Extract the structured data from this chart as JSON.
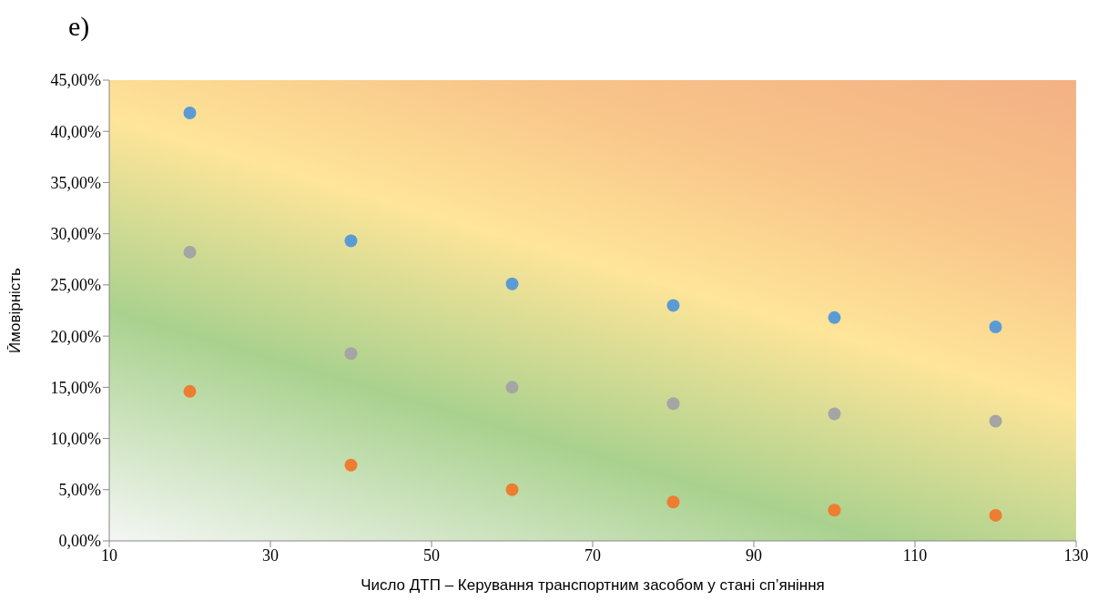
{
  "chart_data": {
    "type": "scatter",
    "title": "e)",
    "xlabel": "Число ДТП – Керування транспортним засобом у стані сп’яніння",
    "ylabel": "Ймовірність",
    "x": [
      20,
      40,
      60,
      80,
      100,
      120
    ],
    "series": [
      {
        "color": "#5b9bd5",
        "values": [
          41.8,
          29.3,
          25.1,
          23.0,
          21.8,
          20.9
        ]
      },
      {
        "color": "#a5a5a5",
        "values": [
          28.2,
          18.3,
          15.0,
          13.4,
          12.4,
          11.7
        ]
      },
      {
        "color": "#ed7d31",
        "values": [
          14.6,
          7.4,
          5.0,
          3.8,
          3.0,
          2.5
        ]
      }
    ],
    "xlim": [
      10,
      130
    ],
    "xticks": [
      10,
      30,
      50,
      70,
      90,
      110,
      130
    ],
    "ylim": [
      0,
      45
    ],
    "yticks": [
      {
        "value": 0,
        "label": "0,00%"
      },
      {
        "value": 5,
        "label": "5,00%"
      },
      {
        "value": 10,
        "label": "10,00%"
      },
      {
        "value": 15,
        "label": "15,00%"
      },
      {
        "value": 20,
        "label": "20,00%"
      },
      {
        "value": 25,
        "label": "25,00%"
      },
      {
        "value": 30,
        "label": "30,00%"
      },
      {
        "value": 35,
        "label": "35,00%"
      },
      {
        "value": 40,
        "label": "40,00%"
      },
      {
        "value": 45,
        "label": "45,00%"
      }
    ],
    "grid": false,
    "legend": false,
    "marker": "circle"
  }
}
